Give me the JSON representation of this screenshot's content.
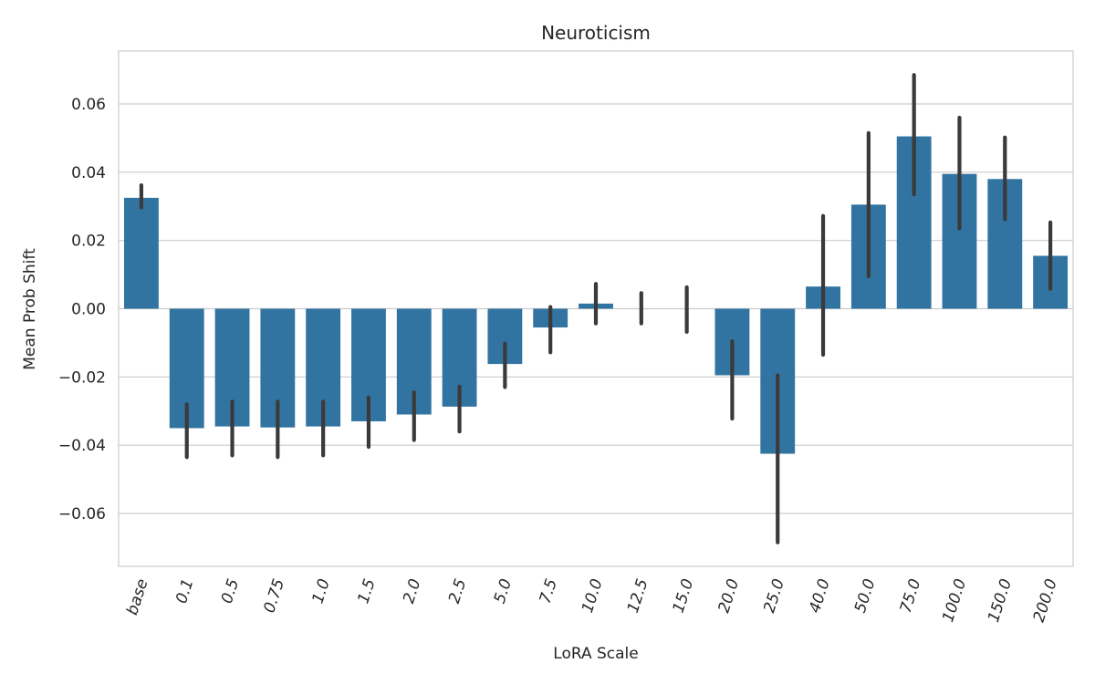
{
  "chart_data": {
    "type": "bar",
    "title": "Neuroticism",
    "xlabel": "LoRA Scale",
    "ylabel": "Mean Prob Shift",
    "ylim": [
      -0.0755,
      0.0755
    ],
    "yticks": [
      -0.06,
      -0.04,
      -0.02,
      0.0,
      0.02,
      0.04,
      0.06
    ],
    "ytick_labels": [
      "−0.06",
      "−0.04",
      "−0.02",
      "0.00",
      "0.02",
      "0.04",
      "0.06"
    ],
    "grid": true,
    "bar_color": "#3274a1",
    "error_color": "#3a3a3a",
    "grid_color": "#cccccc",
    "categories": [
      "base",
      "0.1",
      "0.5",
      "0.75",
      "1.0",
      "1.5",
      "2.0",
      "2.5",
      "5.0",
      "7.5",
      "10.0",
      "12.5",
      "15.0",
      "20.0",
      "25.0",
      "40.0",
      "50.0",
      "75.0",
      "100.0",
      "150.0",
      "200.0"
    ],
    "values": [
      0.0325,
      -0.035,
      -0.0345,
      -0.0348,
      -0.0345,
      -0.033,
      -0.031,
      -0.0287,
      -0.0162,
      -0.0055,
      0.0015,
      0.0,
      0.0,
      -0.0195,
      -0.0425,
      0.0065,
      0.0305,
      0.0505,
      0.0395,
      0.038,
      0.0155
    ],
    "error_low": [
      0.0297,
      -0.0435,
      -0.043,
      -0.0435,
      -0.043,
      -0.0405,
      -0.0385,
      -0.036,
      -0.023,
      -0.0128,
      -0.0043,
      -0.0043,
      -0.0068,
      -0.0322,
      -0.0685,
      -0.0135,
      0.0095,
      0.0335,
      0.0235,
      0.0262,
      0.0058
    ],
    "error_high": [
      0.0362,
      -0.028,
      -0.0272,
      -0.0272,
      -0.0272,
      -0.026,
      -0.0245,
      -0.0228,
      -0.0102,
      0.0005,
      0.0073,
      0.0046,
      0.0063,
      -0.0095,
      -0.0195,
      0.0272,
      0.0515,
      0.0685,
      0.056,
      0.0502,
      0.0253
    ]
  }
}
